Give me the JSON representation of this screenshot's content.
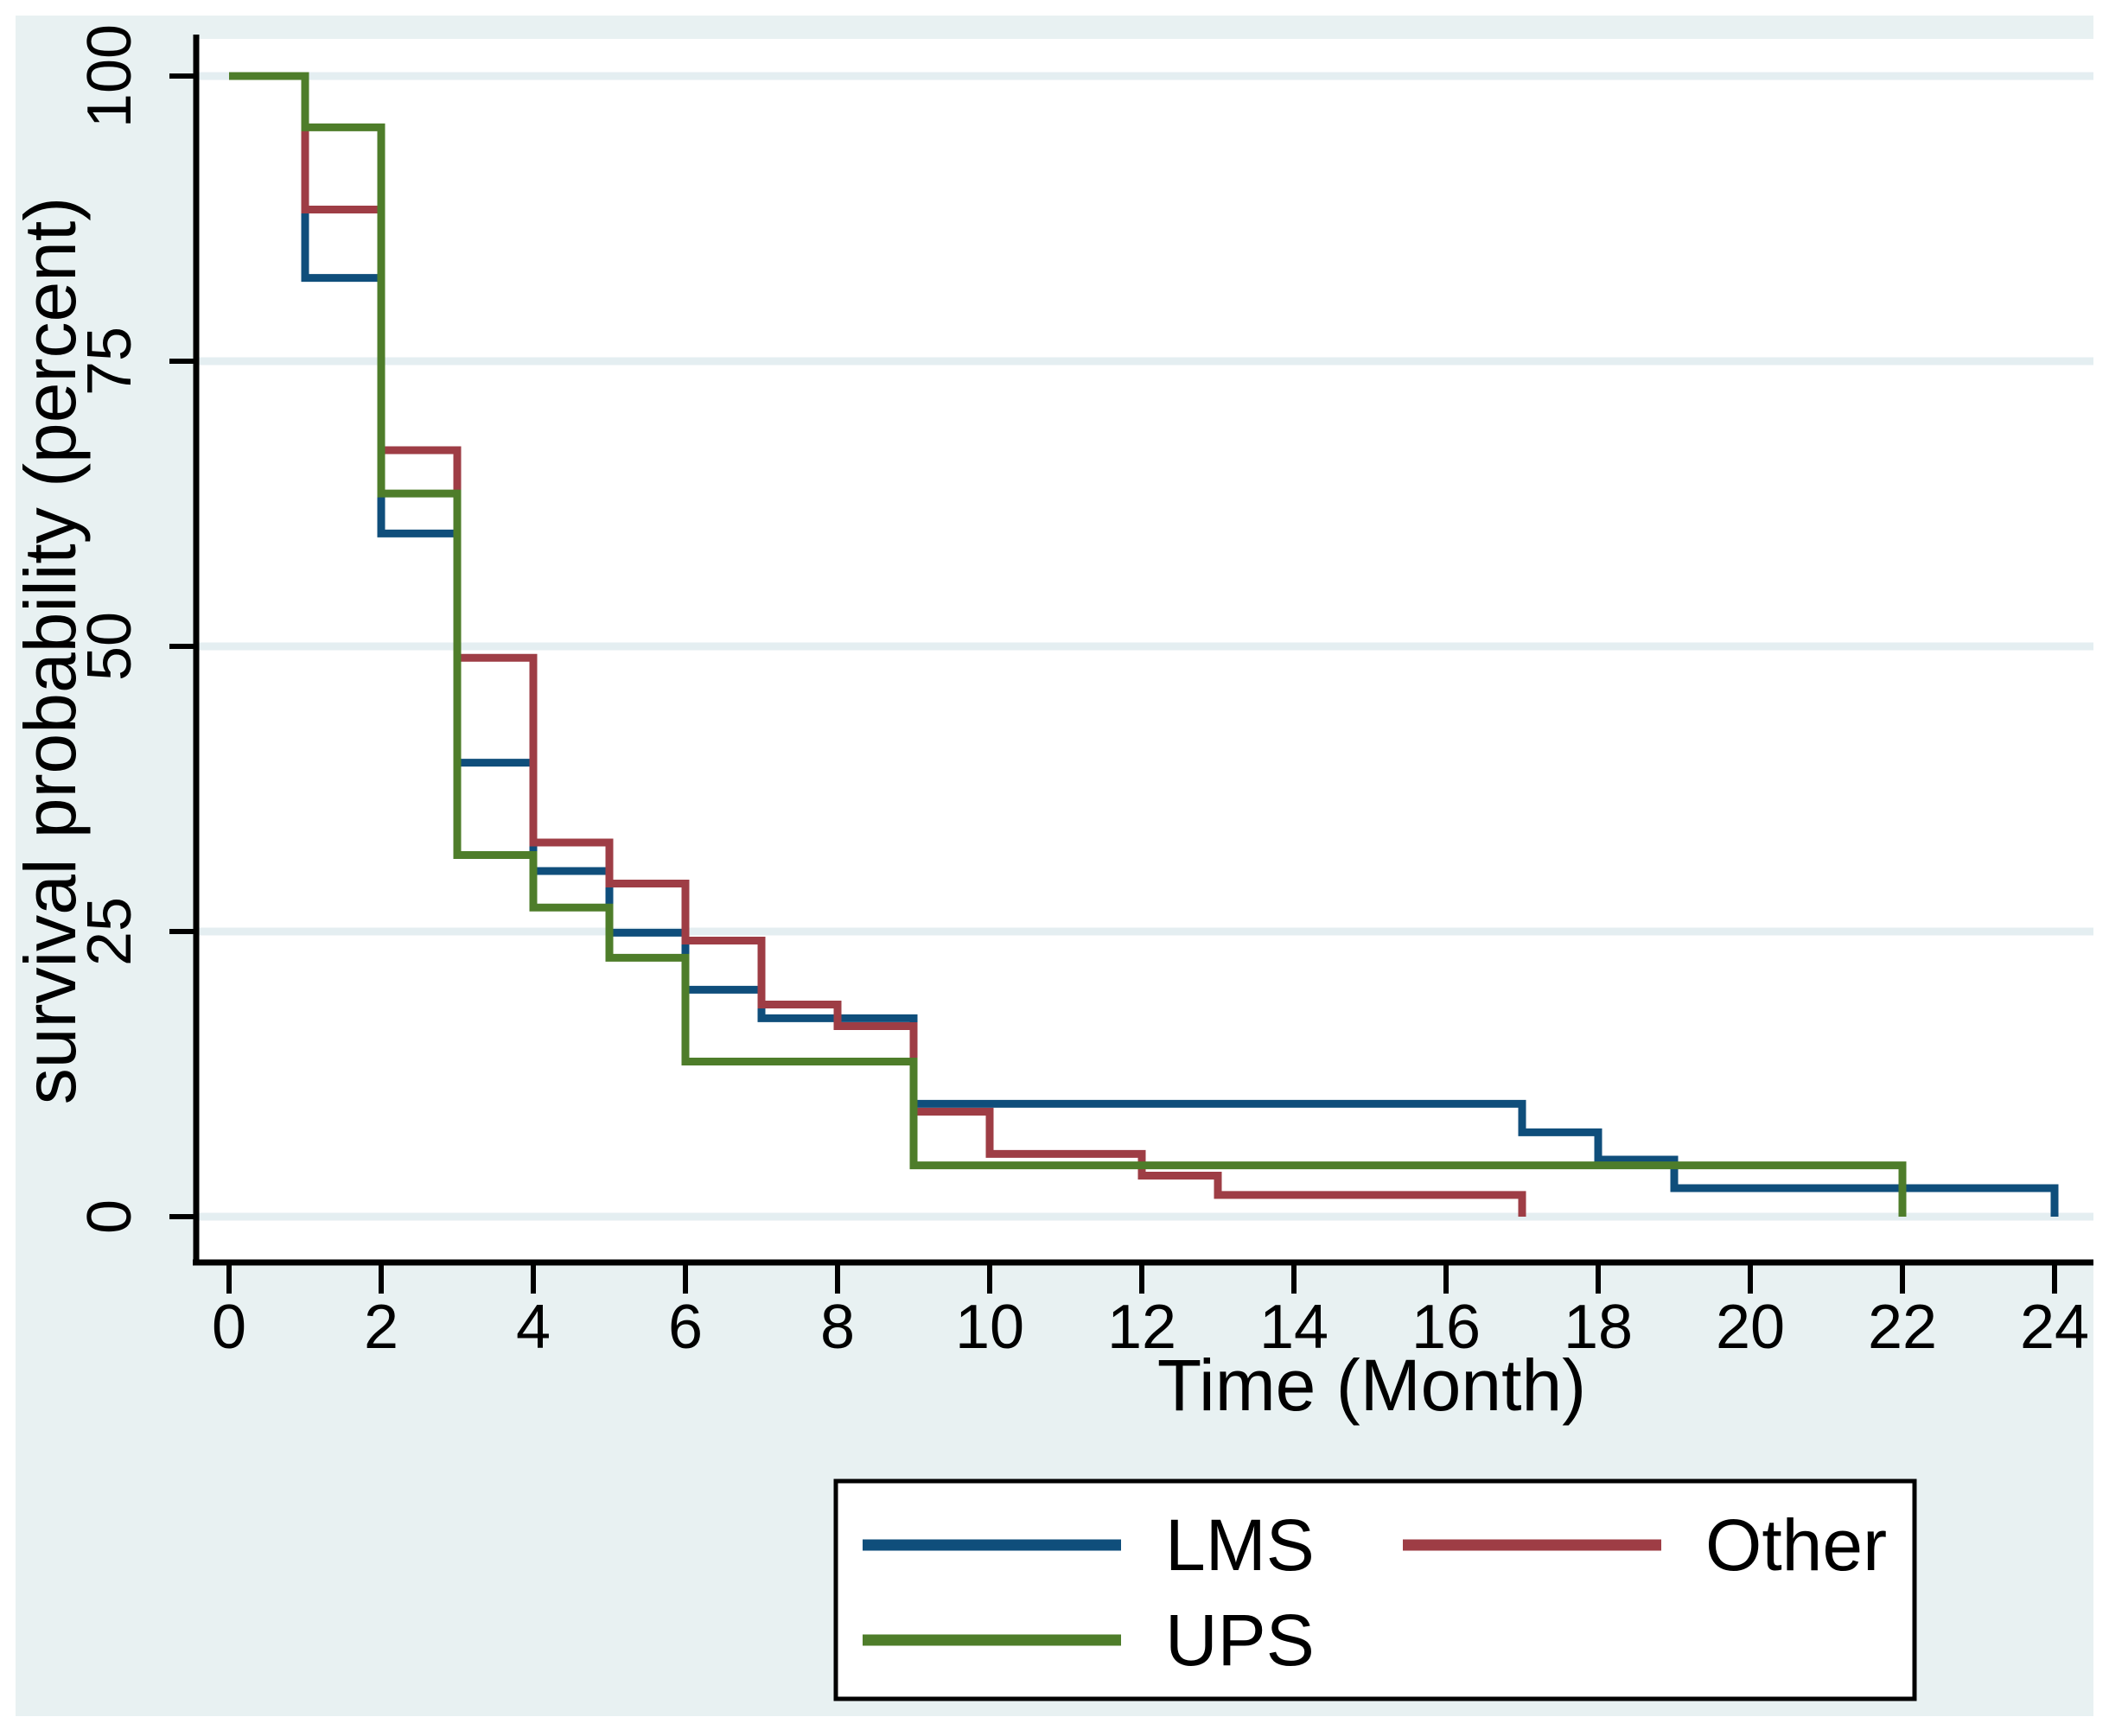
{
  "chart_data": {
    "type": "line",
    "subtype": "kaplan-meier-step",
    "title": "",
    "xlabel": "Time (Month)",
    "ylabel": "survival probability (percent)",
    "xlim": [
      0,
      24
    ],
    "ylim": [
      0,
      100
    ],
    "x_ticks": [
      0,
      2,
      4,
      6,
      8,
      10,
      12,
      14,
      16,
      18,
      20,
      22,
      24
    ],
    "y_ticks": [
      0,
      25,
      50,
      75,
      100
    ],
    "grid": "horizontal-only",
    "legend_position": "bottom-center",
    "series": [
      {
        "name": "LMS",
        "color": "#0f4e7b",
        "steps": [
          [
            0,
            100
          ],
          [
            1,
            82.3
          ],
          [
            2,
            59.9
          ],
          [
            3,
            39.8
          ],
          [
            4,
            30.3
          ],
          [
            5,
            24.9
          ],
          [
            6,
            19.9
          ],
          [
            7,
            17.4
          ],
          [
            9,
            9.9
          ],
          [
            17,
            7.4
          ],
          [
            18,
            5.0
          ],
          [
            19,
            2.5
          ],
          [
            24,
            0
          ]
        ]
      },
      {
        "name": "Other",
        "color": "#9e3d45",
        "steps": [
          [
            0,
            100
          ],
          [
            1,
            88.3
          ],
          [
            2,
            67.2
          ],
          [
            3,
            49.0
          ],
          [
            4,
            32.8
          ],
          [
            5,
            29.2
          ],
          [
            6,
            24.2
          ],
          [
            7,
            18.6
          ],
          [
            8,
            16.7
          ],
          [
            9,
            9.2
          ],
          [
            10,
            5.5
          ],
          [
            12,
            3.6
          ],
          [
            13,
            1.9
          ],
          [
            17,
            0
          ]
        ]
      },
      {
        "name": "UPS",
        "color": "#4e7d2a",
        "steps": [
          [
            0,
            100
          ],
          [
            1,
            95.5
          ],
          [
            2,
            63.4
          ],
          [
            3,
            31.7
          ],
          [
            4,
            27.1
          ],
          [
            5,
            22.7
          ],
          [
            6,
            13.6
          ],
          [
            9,
            4.5
          ],
          [
            22,
            0
          ]
        ]
      }
    ],
    "colors": {
      "graph_background": "#e8f1f2",
      "plot_background": "#ffffff",
      "gridline": "#e4eef1",
      "axis": "#000000",
      "legend_border": "#000000",
      "legend_background": "#ffffff"
    }
  }
}
